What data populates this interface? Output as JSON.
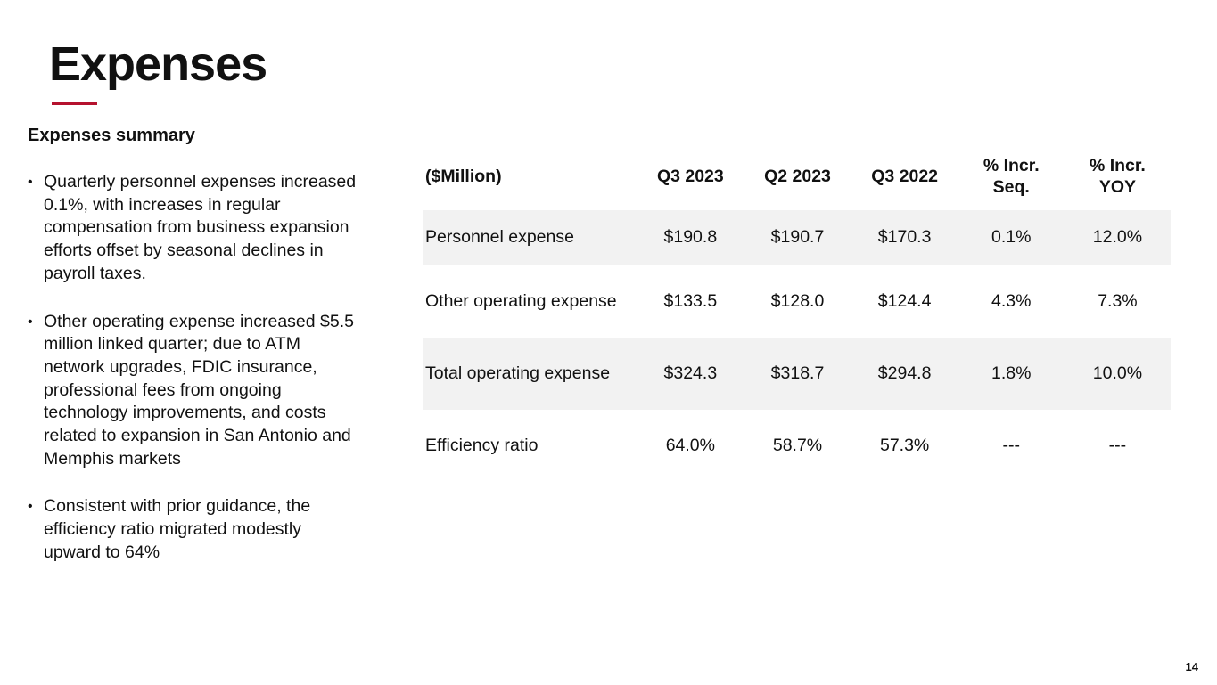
{
  "slide": {
    "title": "Expenses",
    "page_number": "14",
    "accent_color": "#b5122e"
  },
  "summary": {
    "heading": "Expenses summary",
    "bullet_symbol": "•",
    "bullets": [
      "Quarterly personnel expenses increased 0.1%, with increases in regular compensation from business expansion efforts offset by seasonal declines in payroll taxes.",
      "Other operating expense increased $5.5 million linked quarter; due to ATM network upgrades, FDIC insurance, professional fees from ongoing technology improvements, and costs related to expansion in San Antonio and Memphis markets",
      "Consistent with prior guidance, the efficiency ratio migrated modestly upward to 64%"
    ]
  },
  "table": {
    "headers": [
      "($Million)",
      "Q3 2023",
      "Q2 2023",
      "Q3 2022",
      "% Incr. Seq.",
      "% Incr. YOY"
    ],
    "rows": [
      [
        "Personnel expense",
        "$190.8",
        "$190.7",
        "$170.3",
        "0.1%",
        "12.0%"
      ],
      [
        "Other operating expense",
        "$133.5",
        "$128.0",
        "$124.4",
        "4.3%",
        "7.3%"
      ],
      [
        "Total operating expense",
        "$324.3",
        "$318.7",
        "$294.8",
        "1.8%",
        "10.0%"
      ],
      [
        "Efficiency ratio",
        "64.0%",
        "58.7%",
        "57.3%",
        "---",
        "---"
      ]
    ],
    "shaded_row_color": "#f2f2f2"
  }
}
